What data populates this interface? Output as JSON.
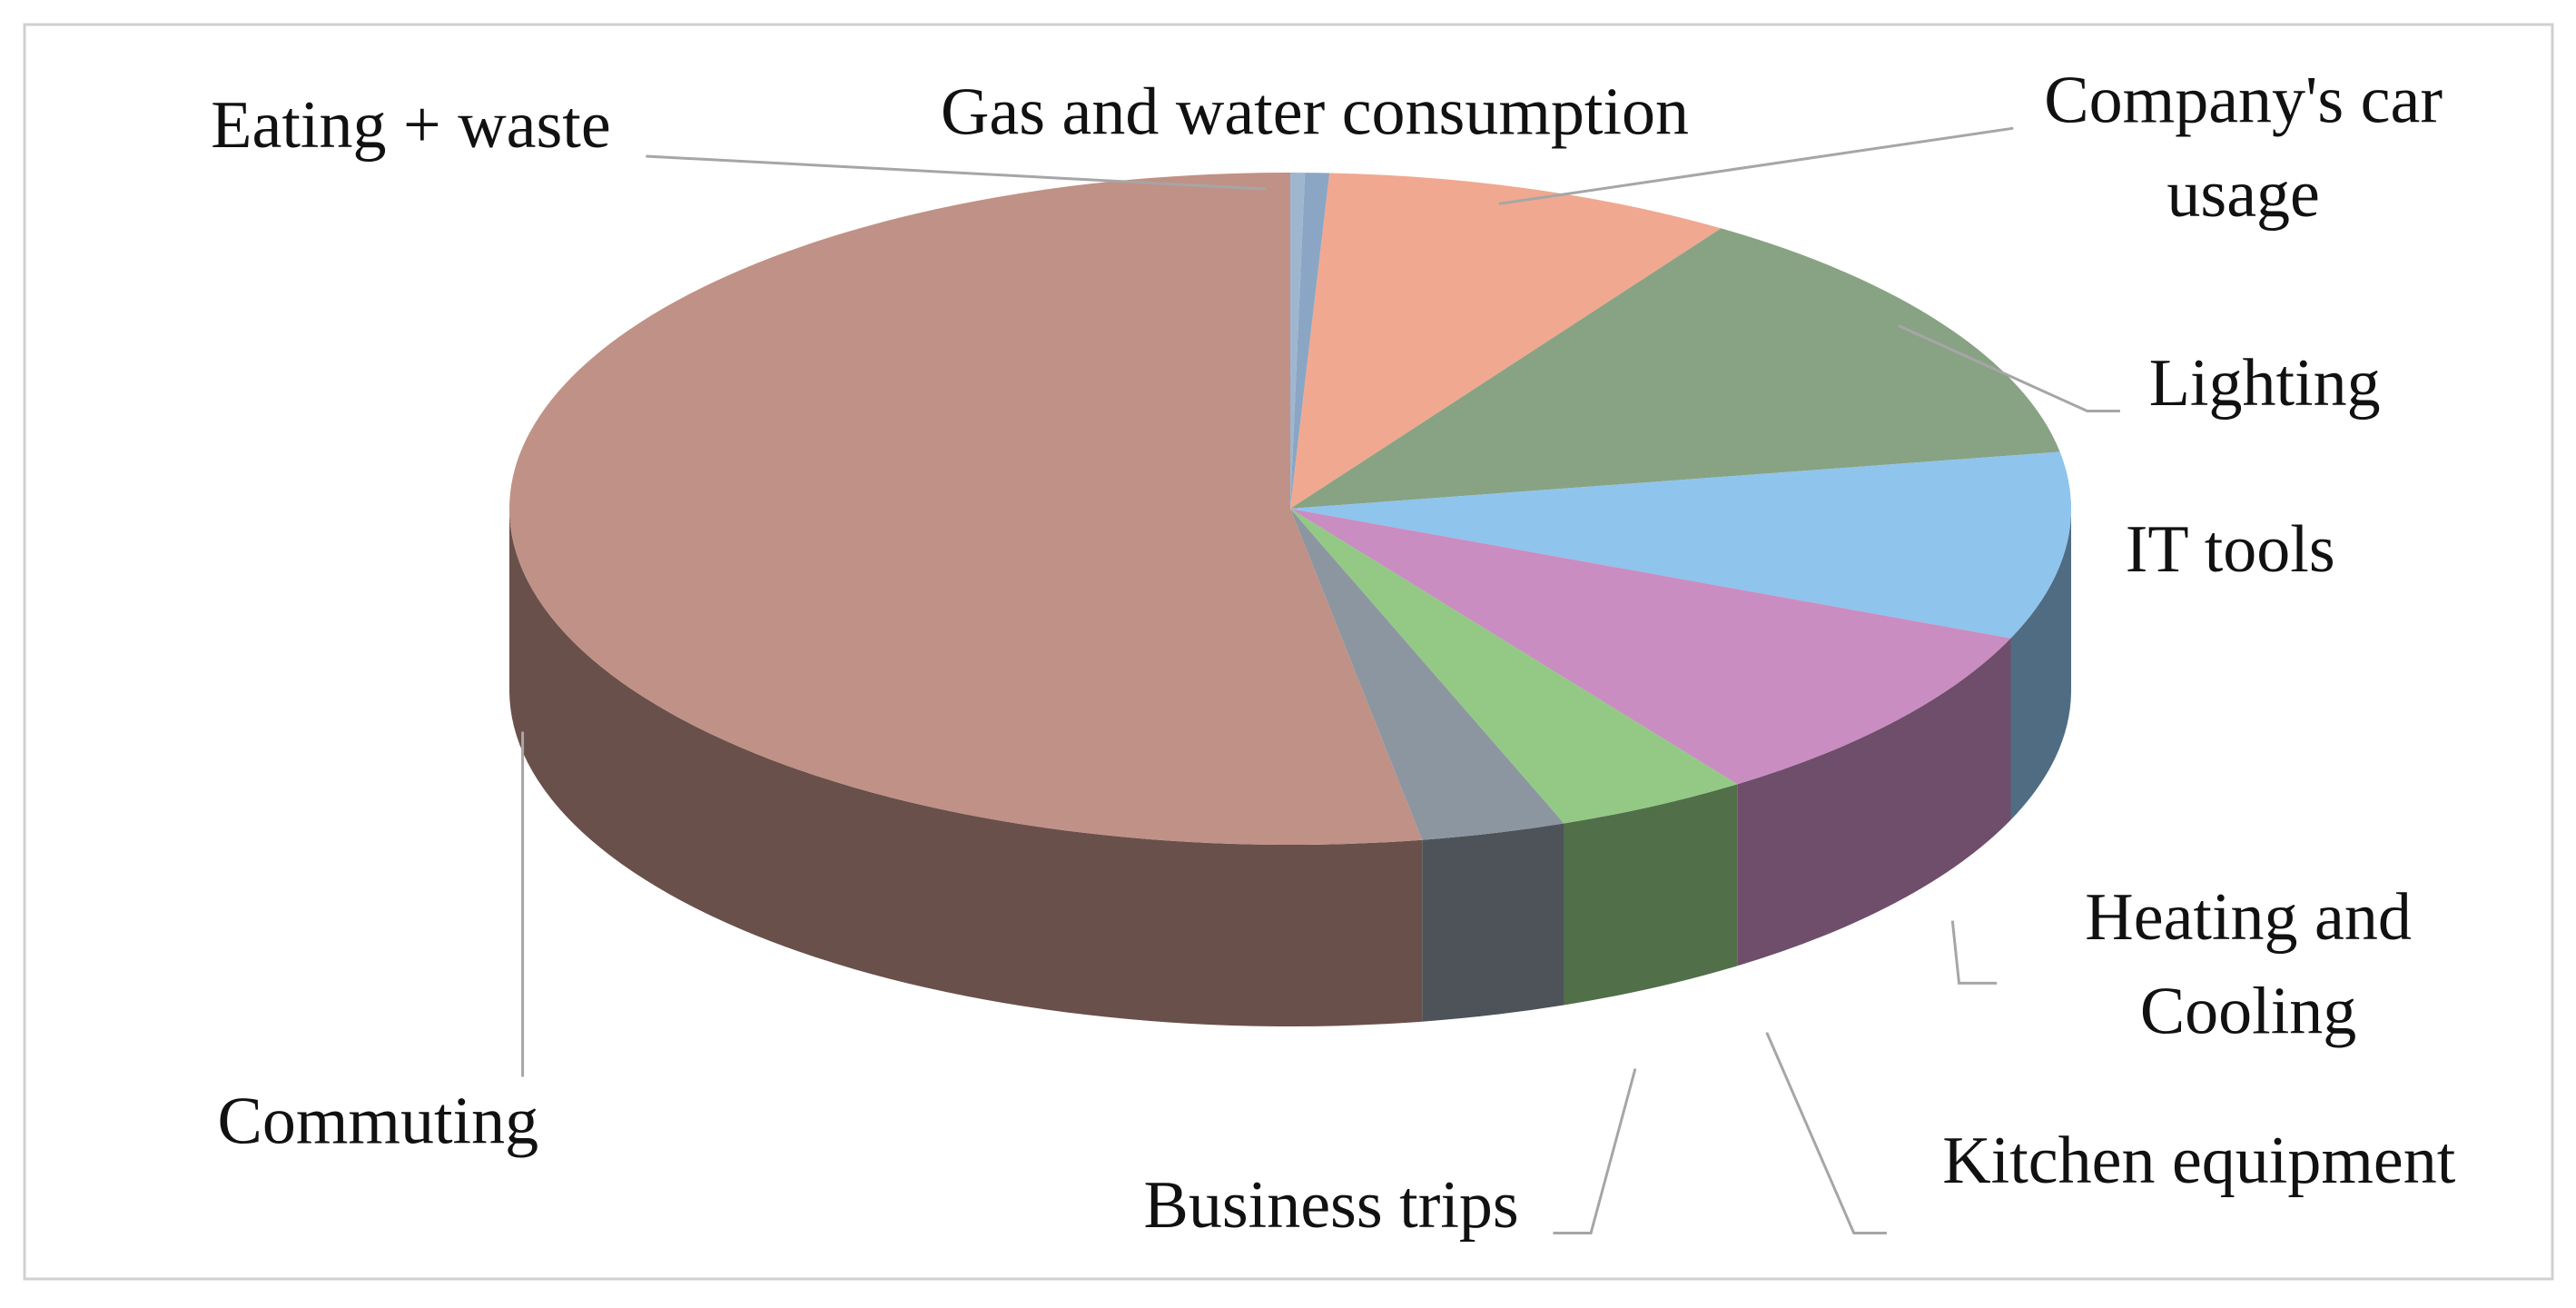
{
  "chart_data": {
    "type": "pie",
    "categories": [
      "Eating + waste",
      "Gas and water consumption",
      "Company's car usage",
      "Lighting",
      "IT tools",
      "Heating and Cooling",
      "Kitchen equipment",
      "Business trips",
      "Commuting"
    ],
    "values": [
      0.3,
      0.5,
      8.5,
      13,
      9,
      9,
      4,
      3,
      52.7
    ],
    "colors": [
      "#9fb6cf",
      "#8aa6c4",
      "#f0a890",
      "#88a383",
      "#8fc4ec",
      "#c98dc2",
      "#93c985",
      "#8c96a0",
      "#c09186"
    ]
  }
}
